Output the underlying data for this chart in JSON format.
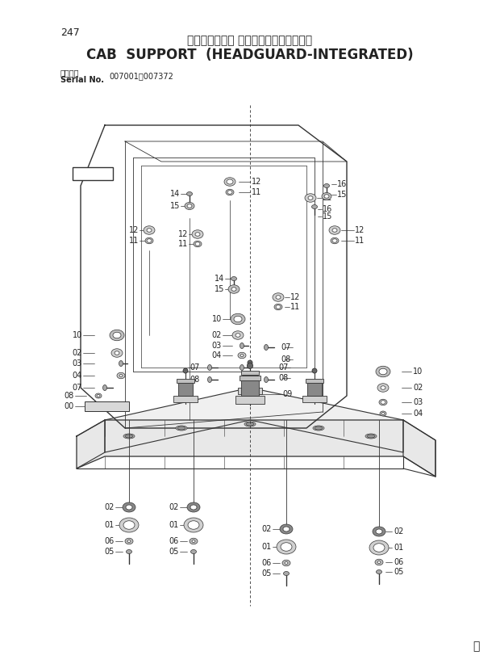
{
  "page_number": "247",
  "title_japanese": "キャブ取付部品 （ヘッドガード一体型）",
  "title_english": "CAB  SUPPORT  (HEADGUARD-INTEGRATED)",
  "serial_label": "適用号機\nSerial No.",
  "serial_number": "007001～007372",
  "watermark": "Ⓤ",
  "background_color": "#ffffff",
  "line_color": "#333333",
  "text_color": "#222222",
  "fig_width": 6.2,
  "fig_height": 8.27,
  "dpi": 100
}
